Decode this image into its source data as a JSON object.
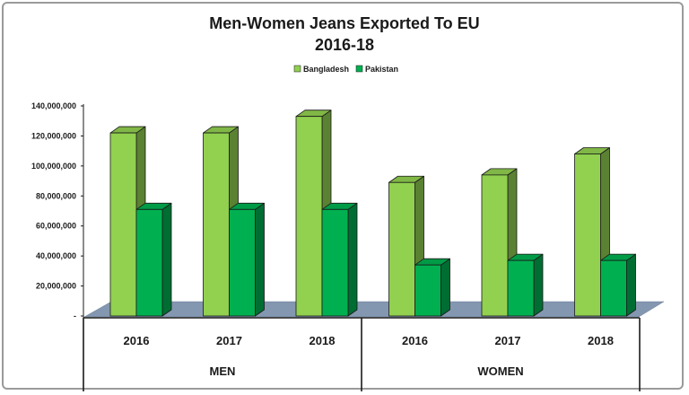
{
  "chart_data": {
    "type": "bar",
    "title": "Men-Women Jeans Exported To EU",
    "subtitle": "2016-18",
    "categories": [
      "2016",
      "2017",
      "2018",
      "2016",
      "2017",
      "2018"
    ],
    "groups": [
      {
        "label": "MEN",
        "categories": [
          "2016",
          "2017",
          "2018"
        ]
      },
      {
        "label": "WOMEN",
        "categories": [
          "2016",
          "2017",
          "2018"
        ]
      }
    ],
    "series": [
      {
        "name": "Bangladesh",
        "color": "#92d050",
        "values": [
          122000000,
          122000000,
          133000000,
          89000000,
          94000000,
          108000000
        ]
      },
      {
        "name": "Pakistan",
        "color": "#00b050",
        "values": [
          71000000,
          71000000,
          71000000,
          34000000,
          37000000,
          37000000
        ]
      }
    ],
    "ylim": [
      0,
      140000000
    ],
    "yticks": [
      "-",
      "20,000,000",
      "40,000,000",
      "60,000,000",
      "80,000,000",
      "100,000,000",
      "120,000,000",
      "140,000,000"
    ],
    "ytick_values": [
      0,
      20000000,
      40000000,
      60000000,
      80000000,
      100000000,
      120000000,
      140000000
    ],
    "legend_position": "top-center",
    "floor_color": "#8497b0",
    "xlabel": "",
    "ylabel": ""
  }
}
